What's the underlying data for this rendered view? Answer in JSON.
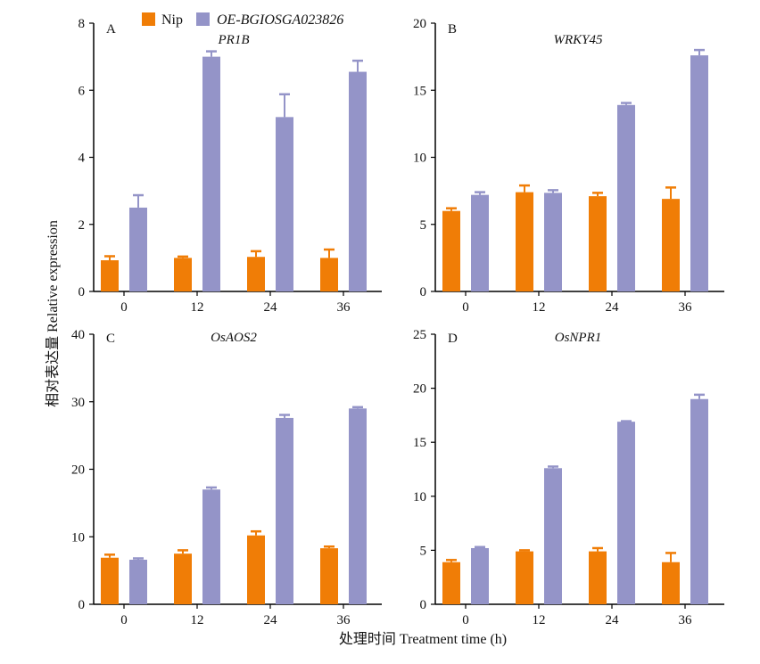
{
  "figure": {
    "ylabel": "相对表达量 Relative expression",
    "xlabel": "处理时间 Treatment time (h)"
  },
  "legend": {
    "items": [
      {
        "label": "Nip",
        "color": "#f07d06"
      },
      {
        "label": "OE-BGIOSGA023826",
        "color": "#9494c8"
      }
    ]
  },
  "chart_data": [
    {
      "type": "bar",
      "panel": "A",
      "title": "PR1B",
      "categories": [
        "0",
        "12",
        "24",
        "36"
      ],
      "ylim": [
        0,
        8
      ],
      "yticks": [
        0,
        2,
        4,
        6,
        8
      ],
      "series": [
        {
          "name": "Nip",
          "values": [
            0.93,
            1.0,
            1.03,
            1.0
          ],
          "errors": [
            0.12,
            0.04,
            0.17,
            0.25
          ]
        },
        {
          "name": "OE-BGIOSGA023826",
          "values": [
            2.5,
            7.0,
            5.2,
            6.55
          ],
          "errors": [
            0.37,
            0.16,
            0.68,
            0.33
          ]
        }
      ]
    },
    {
      "type": "bar",
      "panel": "B",
      "title": "WRKY45",
      "categories": [
        "0",
        "12",
        "24",
        "36"
      ],
      "ylim": [
        0,
        20
      ],
      "yticks": [
        0,
        5,
        10,
        15,
        20
      ],
      "series": [
        {
          "name": "Nip",
          "values": [
            6.0,
            7.4,
            7.1,
            6.9
          ],
          "errors": [
            0.2,
            0.5,
            0.25,
            0.85
          ]
        },
        {
          "name": "OE-BGIOSGA023826",
          "values": [
            7.2,
            7.35,
            13.9,
            17.6
          ],
          "errors": [
            0.2,
            0.2,
            0.15,
            0.4
          ]
        }
      ]
    },
    {
      "type": "bar",
      "panel": "C",
      "title": "OsAOS2",
      "categories": [
        "0",
        "12",
        "24",
        "36"
      ],
      "ylim": [
        0,
        40
      ],
      "yticks": [
        0,
        10,
        20,
        30,
        40
      ],
      "series": [
        {
          "name": "Nip",
          "values": [
            6.9,
            7.5,
            10.2,
            8.3
          ],
          "errors": [
            0.45,
            0.5,
            0.6,
            0.25
          ]
        },
        {
          "name": "OE-BGIOSGA023826",
          "values": [
            6.6,
            17.0,
            27.6,
            29.0
          ],
          "errors": [
            0.2,
            0.3,
            0.45,
            0.2
          ]
        }
      ]
    },
    {
      "type": "bar",
      "panel": "D",
      "title": "OsNPR1",
      "categories": [
        "0",
        "12",
        "24",
        "36"
      ],
      "ylim": [
        0,
        25
      ],
      "yticks": [
        0,
        5,
        10,
        15,
        20,
        25
      ],
      "series": [
        {
          "name": "Nip",
          "values": [
            3.9,
            4.9,
            4.9,
            3.9
          ],
          "errors": [
            0.2,
            0.1,
            0.3,
            0.85
          ]
        },
        {
          "name": "OE-BGIOSGA023826",
          "values": [
            5.2,
            12.6,
            16.9,
            19.0
          ],
          "errors": [
            0.1,
            0.15,
            0.05,
            0.4
          ]
        }
      ]
    }
  ]
}
